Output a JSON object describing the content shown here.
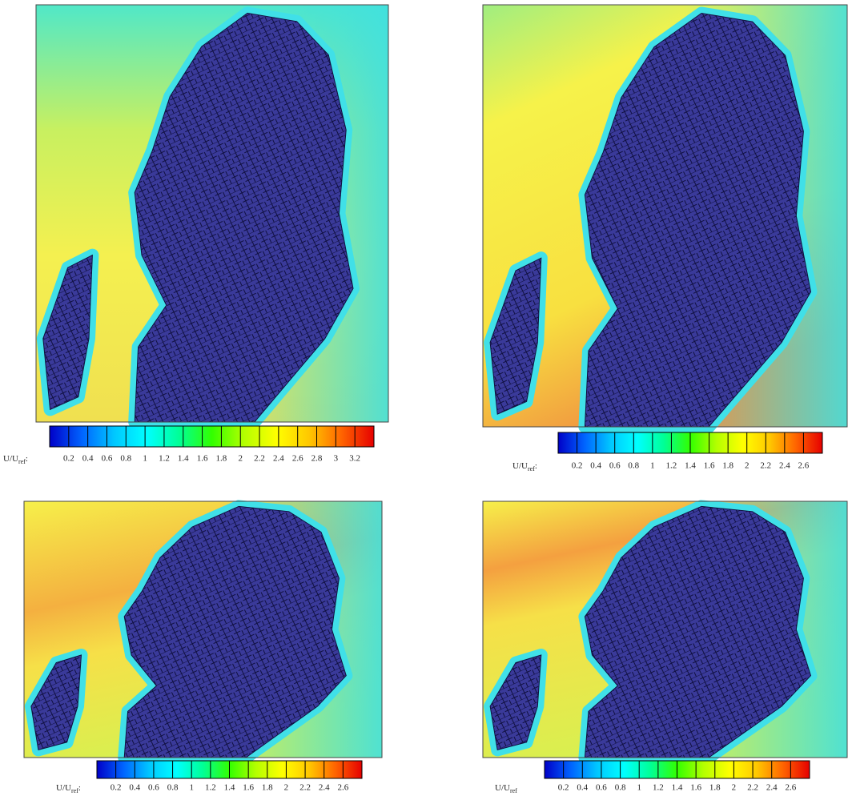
{
  "chart_data": [
    {
      "type": "colormap",
      "colorbar_label": "U/U",
      "colorbar_label_sub": "ref",
      "colorbar_label_suffix": ":",
      "clim": [
        0,
        3.4
      ],
      "cticks": [
        0.2,
        0.4,
        0.6,
        0.8,
        1,
        1.2,
        1.4,
        1.6,
        1.8,
        2,
        2.2,
        2.4,
        2.6,
        2.8,
        3,
        3.2
      ],
      "colormap": [
        "#0000c8",
        "#0064ff",
        "#00c8ff",
        "#00ffff",
        "#00ff96",
        "#32ff00",
        "#b4ff00",
        "#ffff00",
        "#ffc800",
        "#ff6400",
        "#e60000"
      ]
    },
    {
      "type": "colormap",
      "colorbar_label": "U/U",
      "colorbar_label_sub": "ref",
      "colorbar_label_suffix": ":",
      "clim": [
        0,
        2.8
      ],
      "cticks": [
        0.2,
        0.4,
        0.6,
        0.8,
        1,
        1.2,
        1.4,
        1.6,
        1.8,
        2,
        2.2,
        2.4,
        2.6
      ],
      "colormap": [
        "#0000c8",
        "#0064ff",
        "#00c8ff",
        "#00ffff",
        "#00ff96",
        "#32ff00",
        "#b4ff00",
        "#ffff00",
        "#ffc800",
        "#ff6400",
        "#e60000"
      ]
    },
    {
      "type": "colormap",
      "colorbar_label": "U/U",
      "colorbar_label_sub": "ref",
      "colorbar_label_suffix": ":",
      "clim": [
        0,
        2.8
      ],
      "cticks": [
        0.2,
        0.4,
        0.6,
        0.8,
        1,
        1.2,
        1.4,
        1.6,
        1.8,
        2,
        2.2,
        2.4,
        2.6
      ],
      "colormap": [
        "#0000c8",
        "#0064ff",
        "#00c8ff",
        "#00ffff",
        "#00ff96",
        "#32ff00",
        "#b4ff00",
        "#ffff00",
        "#ffc800",
        "#ff6400",
        "#e60000"
      ]
    },
    {
      "type": "colormap",
      "colorbar_label": "U/U",
      "colorbar_label_sub": "ref",
      "clim": [
        0,
        2.8
      ],
      "cticks": [
        0.2,
        0.4,
        0.6,
        0.8,
        1,
        1.2,
        1.4,
        1.6,
        1.8,
        2,
        2.2,
        2.4,
        2.6
      ],
      "colormap": [
        "#0000c8",
        "#0064ff",
        "#00c8ff",
        "#00ffff",
        "#00ff96",
        "#32ff00",
        "#b4ff00",
        "#ffff00",
        "#ffc800",
        "#ff6400",
        "#e60000"
      ]
    }
  ]
}
